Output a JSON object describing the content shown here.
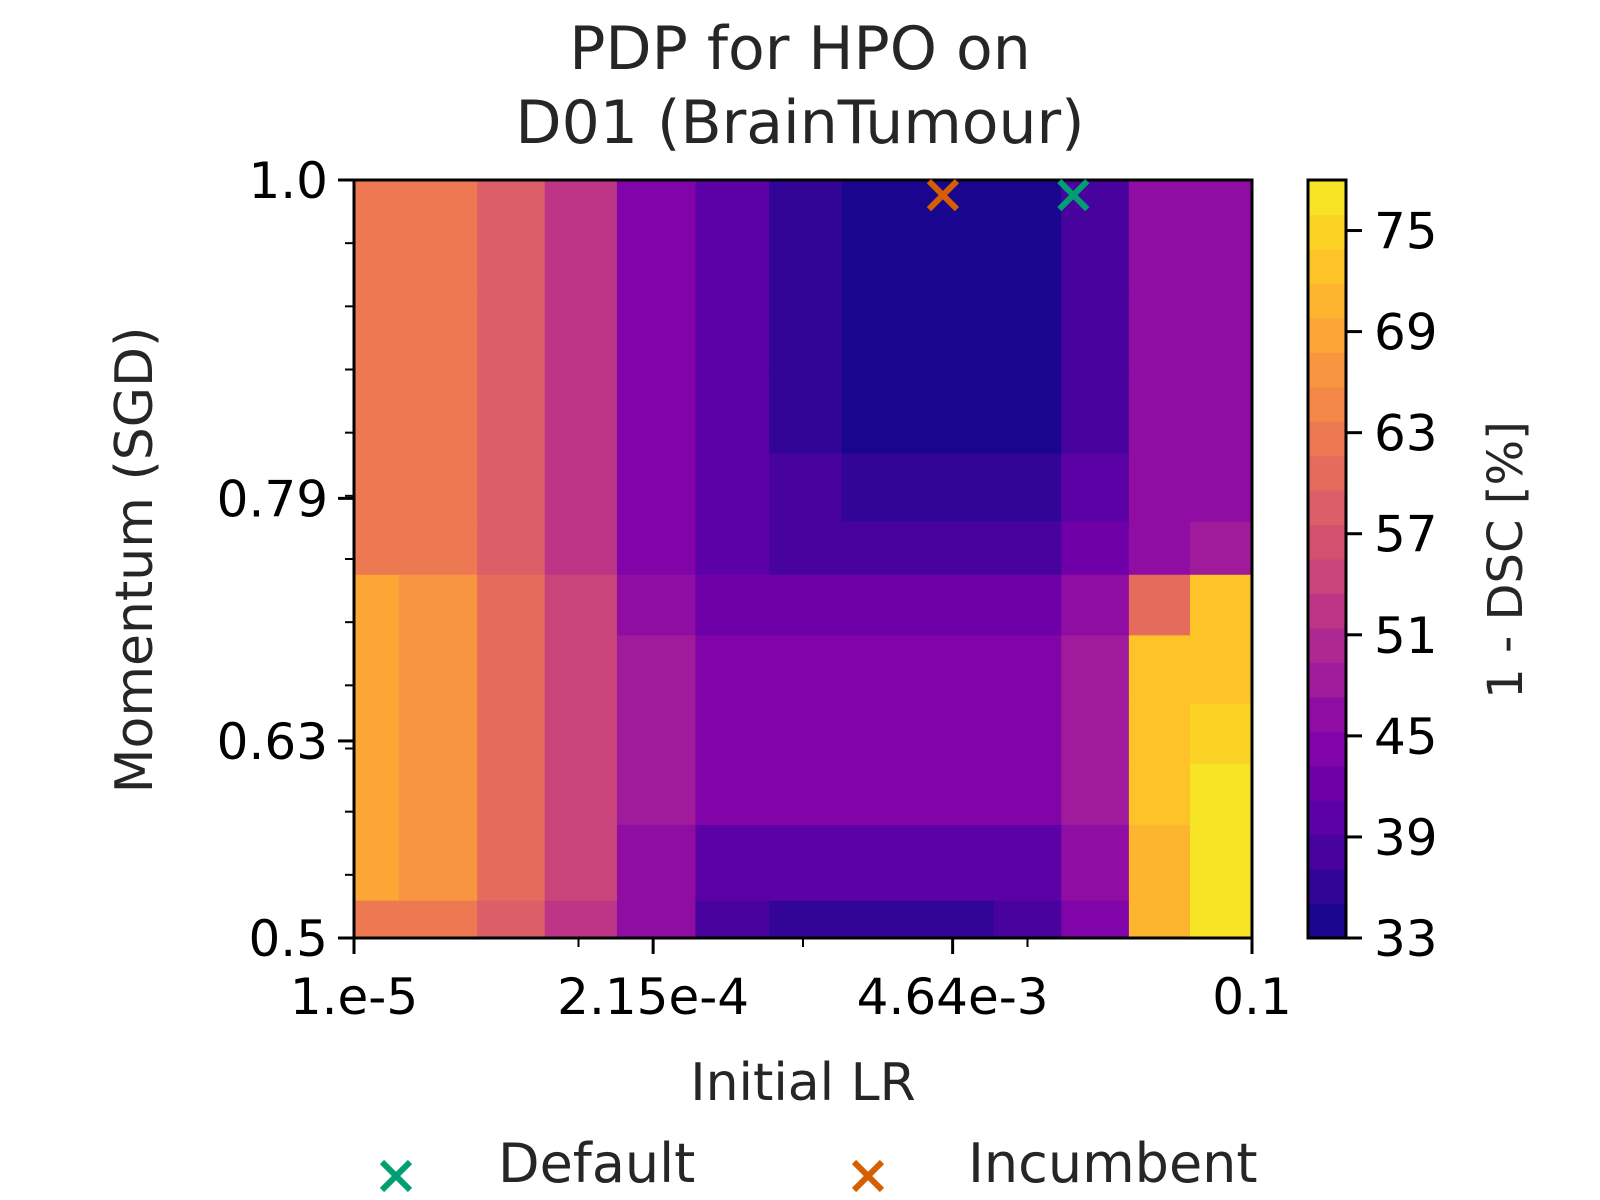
{
  "title": [
    "PDP for HPO on",
    "D01 (BrainTumour)"
  ],
  "chart_data": {
    "type": "heatmap",
    "subtype": "filled contour (partial dependence plot)",
    "title": "PDP for HPO on D01 (BrainTumour)",
    "xlabel": "Initial LR",
    "ylabel": "Momentum (SGD)",
    "x_scale": "log",
    "xlim": [
      1e-05,
      0.1
    ],
    "ylim": [
      0.5,
      1.0
    ],
    "x_ticks": [
      {
        "value": 1e-05,
        "label": "1.e-5"
      },
      {
        "value": 0.000215,
        "label": "2.15e-4"
      },
      {
        "value": 0.00464,
        "label": "4.64e-3"
      },
      {
        "value": 0.1,
        "label": "0.1"
      }
    ],
    "y_ticks": [
      {
        "value": 0.5,
        "label": "0.5"
      },
      {
        "value": 0.63,
        "label": "0.63"
      },
      {
        "value": 0.79,
        "label": "0.79"
      },
      {
        "value": 1.0,
        "label": "1.0"
      }
    ],
    "colorbar": {
      "label": "1 - DSC [%]",
      "colormap": "plasma",
      "range": [
        33,
        78
      ],
      "ticks": [
        33,
        39,
        45,
        51,
        57,
        63,
        69,
        75
      ],
      "colors": [
        "#1a068e",
        "#330597",
        "#48039f",
        "#5c01a6",
        "#6f00a8",
        "#8004a8",
        "#900da4",
        "#a01a9c",
        "#ae2892",
        "#bc3587",
        "#c9447a",
        "#d3516f",
        "#dc5e66",
        "#e56b5d",
        "#ed7953",
        "#f48849",
        "#f89540",
        "#fca636",
        "#fdb42f",
        "#fdc328",
        "#fbd324",
        "#f7e425"
      ]
    },
    "grid_x": [
      1e-05,
      2.5e-05,
      5e-05,
      0.0001,
      0.00022,
      0.0005,
      0.001,
      0.0022,
      0.005,
      0.01,
      0.02,
      0.04,
      0.07,
      0.1
    ],
    "grid_y": [
      0.5,
      0.55,
      0.6,
      0.63,
      0.68,
      0.72,
      0.76,
      0.79,
      0.85,
      0.9,
      0.95,
      1.0
    ],
    "z": [
      [
        63,
        62,
        58,
        52,
        46,
        38,
        37,
        37,
        37,
        38,
        45,
        70,
        77,
        77
      ],
      [
        68,
        66,
        60,
        54,
        47,
        41,
        40,
        40,
        40,
        41,
        46,
        71,
        77,
        77
      ],
      [
        69,
        67,
        60,
        54,
        48,
        44,
        44,
        44,
        44,
        44,
        48,
        72,
        77,
        77
      ],
      [
        69,
        67,
        60,
        54,
        48,
        44,
        44,
        44,
        44,
        44,
        48,
        72,
        74,
        74
      ],
      [
        69,
        67,
        60,
        54,
        48,
        44,
        44,
        44,
        44,
        44,
        48,
        72,
        73,
        73
      ],
      [
        68,
        66,
        60,
        54,
        47,
        43,
        43,
        43,
        43,
        43,
        46,
        60,
        72,
        72
      ],
      [
        62,
        62,
        59,
        53,
        45,
        41,
        39,
        39,
        39,
        39,
        42,
        47,
        49,
        49
      ],
      [
        62,
        62,
        59,
        53,
        45,
        40,
        38,
        36,
        36,
        36,
        40,
        46,
        47,
        47
      ],
      [
        62,
        62,
        59,
        53,
        45,
        40,
        36,
        35,
        35,
        35,
        39,
        46,
        47,
        47
      ],
      [
        62,
        62,
        59,
        53,
        45,
        40,
        36,
        35,
        35,
        35,
        39,
        46,
        47,
        47
      ],
      [
        62,
        62,
        59,
        53,
        45,
        40,
        36,
        35,
        35,
        35,
        39,
        46,
        47,
        47
      ],
      [
        62,
        62,
        59,
        53,
        45,
        40,
        36,
        35,
        35,
        35,
        39,
        46,
        47,
        47
      ]
    ],
    "points": [
      {
        "name": "Default",
        "x": 0.016,
        "y": 0.99,
        "color": "#009e73",
        "marker": "x"
      },
      {
        "name": "Incumbent",
        "x": 0.0042,
        "y": 0.99,
        "color": "#d55e00",
        "marker": "x"
      }
    ],
    "legend": {
      "placement": "bottom-center",
      "entries": [
        "Default",
        "Incumbent"
      ]
    }
  }
}
